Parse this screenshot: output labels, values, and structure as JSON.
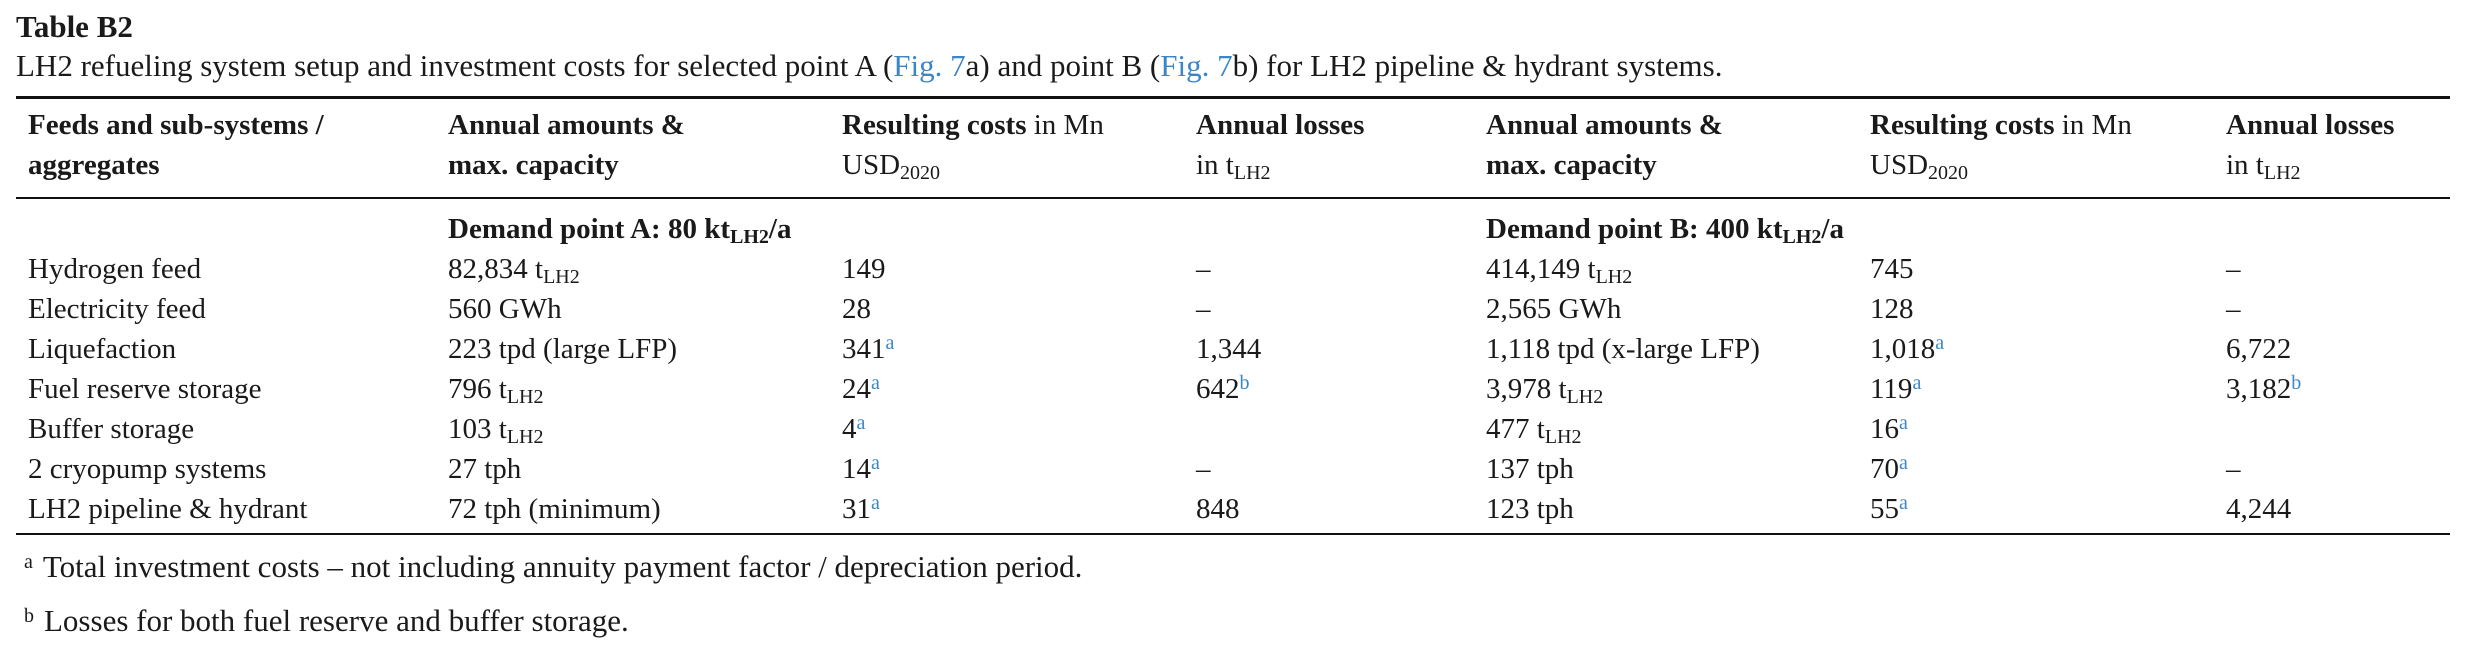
{
  "table_label": "Table B2",
  "caption": {
    "part1": "LH2 refueling system setup and investment costs for selected point A (",
    "ref1": "Fig. 7",
    "part2": "a) and point B (",
    "ref2": "Fig. 7",
    "part3": "b) for LH2 pipeline & hydrant systems."
  },
  "headers": {
    "feeds_line1": "Feeds and sub-systems /",
    "feeds_line2": "aggregates",
    "amounts_line1": "Annual amounts &",
    "amounts_line2": "max. capacity",
    "costs_bold": "Resulting costs",
    "costs_rest": " in Mn",
    "costs_unit": "USD",
    "costs_sub": "2020",
    "losses_line1": "Annual losses",
    "losses_line2": "in t",
    "losses_sub": "LH2"
  },
  "groups": {
    "a_text": "Demand point A: 80 kt",
    "a_sub": "LH2",
    "a_tail": "/a",
    "b_text": "Demand point B: 400 kt",
    "b_sub": "LH2",
    "b_tail": "/a"
  },
  "rows": [
    {
      "name": "Hydrogen feed",
      "a_amount": "82,834 t",
      "a_amount_sub": "LH2",
      "a_cost": "149",
      "a_cost_note": "",
      "a_loss": "–",
      "a_loss_note": "",
      "b_amount": "414,149 t",
      "b_amount_sub": "LH2",
      "b_cost": "745",
      "b_cost_note": "",
      "b_loss": "–",
      "b_loss_note": ""
    },
    {
      "name": "Electricity feed",
      "a_amount": "560 GWh",
      "a_amount_sub": "",
      "a_cost": "28",
      "a_cost_note": "",
      "a_loss": "–",
      "a_loss_note": "",
      "b_amount": "2,565 GWh",
      "b_amount_sub": "",
      "b_cost": "128",
      "b_cost_note": "",
      "b_loss": "–",
      "b_loss_note": ""
    },
    {
      "name": "Liquefaction",
      "a_amount": "223 tpd (large LFP)",
      "a_amount_sub": "",
      "a_cost": "341",
      "a_cost_note": "a",
      "a_loss": "1,344",
      "a_loss_note": "",
      "b_amount": "1,118 tpd (x-large LFP)",
      "b_amount_sub": "",
      "b_cost": "1,018",
      "b_cost_note": "a",
      "b_loss": "6,722",
      "b_loss_note": ""
    },
    {
      "name": "Fuel reserve storage",
      "a_amount": "796 t",
      "a_amount_sub": "LH2",
      "a_cost": "24",
      "a_cost_note": "a",
      "a_loss": "642",
      "a_loss_note": "b",
      "b_amount": "3,978 t",
      "b_amount_sub": "LH2",
      "b_cost": "119",
      "b_cost_note": "a",
      "b_loss": "3,182",
      "b_loss_note": "b"
    },
    {
      "name": "Buffer storage",
      "a_amount": "103 t",
      "a_amount_sub": "LH2",
      "a_cost": "4",
      "a_cost_note": "a",
      "a_loss": "",
      "a_loss_note": "",
      "b_amount": "477 t",
      "b_amount_sub": "LH2",
      "b_cost": "16",
      "b_cost_note": "a",
      "b_loss": "",
      "b_loss_note": ""
    },
    {
      "name": "2 cryopump systems",
      "a_amount": "27 tph",
      "a_amount_sub": "",
      "a_cost": "14",
      "a_cost_note": "a",
      "a_loss": "–",
      "a_loss_note": "",
      "b_amount": "137 tph",
      "b_amount_sub": "",
      "b_cost": "70",
      "b_cost_note": "a",
      "b_loss": "–",
      "b_loss_note": ""
    },
    {
      "name": "LH2 pipeline & hydrant",
      "a_amount": "72 tph (minimum)",
      "a_amount_sub": "",
      "a_cost": "31",
      "a_cost_note": "a",
      "a_loss": "848",
      "a_loss_note": "",
      "b_amount": "123 tph",
      "b_amount_sub": "",
      "b_cost": "55",
      "b_cost_note": "a",
      "b_loss": "4,244",
      "b_loss_note": ""
    }
  ],
  "footnotes": [
    {
      "mark": "a",
      "text": "Total investment costs – not including annuity payment factor / depreciation period."
    },
    {
      "mark": "b",
      "text": "Losses for both fuel reserve and buffer storage."
    }
  ],
  "colors": {
    "link": "#3a86c8",
    "text": "#1a1a1a",
    "rule": "#111111"
  }
}
